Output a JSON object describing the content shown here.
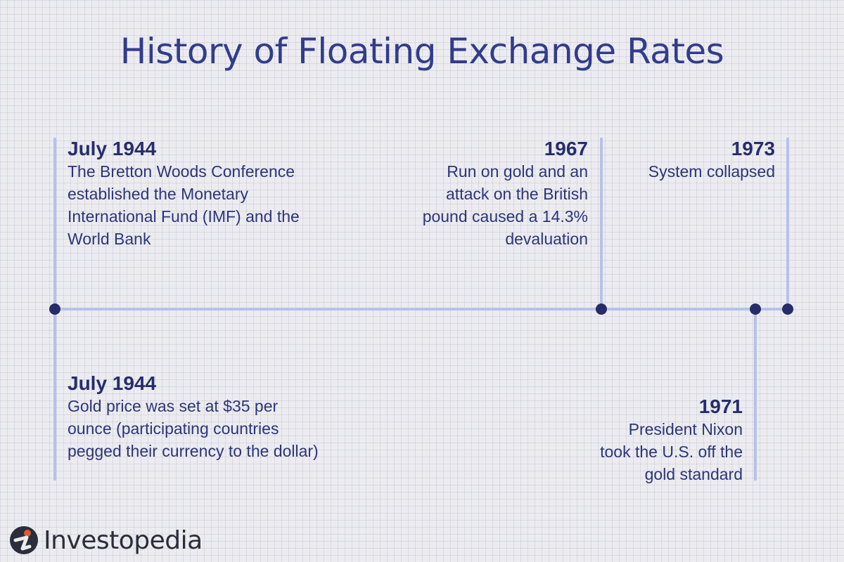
{
  "title": "History of Floating Exchange Rates",
  "colors": {
    "line": "#b6c1ec",
    "dot": "#262c68",
    "text": "#2c3578",
    "logo_accent": "#e05a2a"
  },
  "events": [
    {
      "year": "July 1944",
      "text": "The Bretton Woods Conference established the Monetary International Fund (IMF) and the World Bank",
      "position": "above"
    },
    {
      "year": "July 1944",
      "text": "Gold price was set at $35 per ounce (participating countries pegged their currency to the dollar)",
      "position": "below"
    },
    {
      "year": "1967",
      "text": "Run on gold and an attack on the British pound caused a 14.3% devaluation",
      "position": "above"
    },
    {
      "year": "1971",
      "text": "President Nixon took the U.S. off the gold standard",
      "position": "below"
    },
    {
      "year": "1973",
      "text": "System collapsed",
      "position": "above"
    }
  ],
  "logo": {
    "text": "Investopedia",
    "icon": "investopedia-i-icon"
  }
}
